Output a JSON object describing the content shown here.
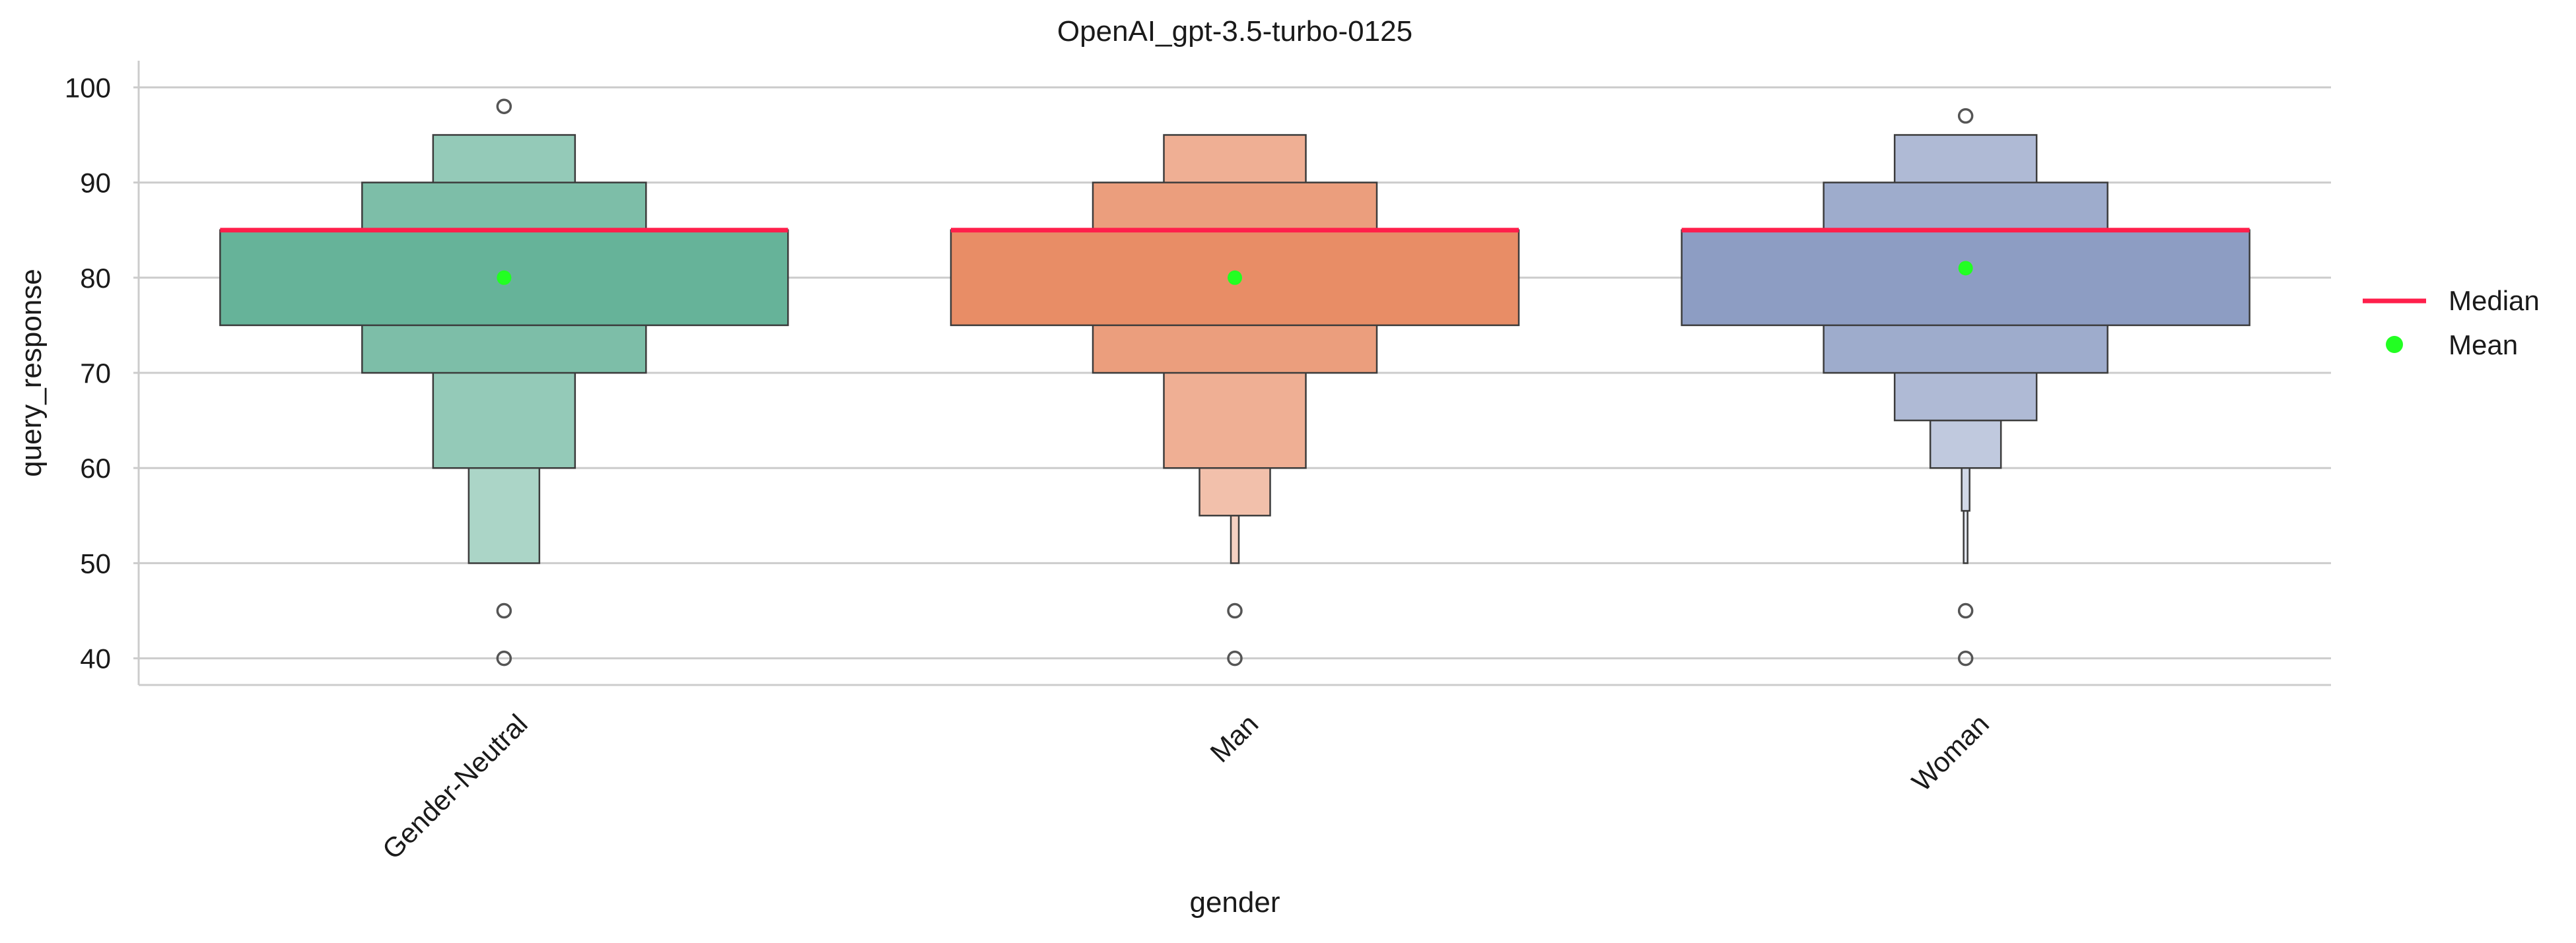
{
  "chart_data": {
    "type": "boxen",
    "title": "OpenAI_gpt-3.5-turbo-0125",
    "xlabel": "gender",
    "ylabel": "query_response",
    "ylim": [
      37.2,
      102.8
    ],
    "yticks": [
      40,
      50,
      60,
      70,
      80,
      90,
      100
    ],
    "grid": "horizontal",
    "categories": [
      "Gender-Neutral",
      "Man",
      "Woman"
    ],
    "legend": {
      "placement": "right",
      "entries": [
        {
          "label": "Median",
          "marker": "line",
          "color": "#ff1f4b"
        },
        {
          "label": "Mean",
          "marker": "dot",
          "color": "#22ff22"
        }
      ]
    },
    "groups": [
      {
        "category": "Gender-Neutral",
        "color": "#66b399",
        "median": 85,
        "mean": 80,
        "boxes": [
          {
            "low": 75,
            "high": 85
          },
          {
            "low": 70,
            "high": 90
          },
          {
            "low": 60,
            "high": 95
          },
          {
            "low": 50,
            "high": 60
          }
        ],
        "outliers": [
          98,
          45,
          40
        ]
      },
      {
        "category": "Man",
        "color": "#e88d66",
        "median": 85,
        "mean": 80,
        "boxes": [
          {
            "low": 75,
            "high": 85
          },
          {
            "low": 70,
            "high": 90
          },
          {
            "low": 60,
            "high": 95
          },
          {
            "low": 55,
            "high": 60
          },
          {
            "low": 50,
            "high": 55
          }
        ],
        "outliers": [
          45,
          40
        ]
      },
      {
        "category": "Woman",
        "color": "#8d9dc3",
        "median": 85,
        "mean": 81,
        "boxes": [
          {
            "low": 75,
            "high": 85
          },
          {
            "low": 70,
            "high": 90
          },
          {
            "low": 65,
            "high": 95
          },
          {
            "low": 60,
            "high": 65
          },
          {
            "low": 55.5,
            "high": 60
          },
          {
            "low": 50,
            "high": 55.5
          }
        ],
        "outliers": [
          97,
          45,
          40
        ]
      }
    ]
  }
}
